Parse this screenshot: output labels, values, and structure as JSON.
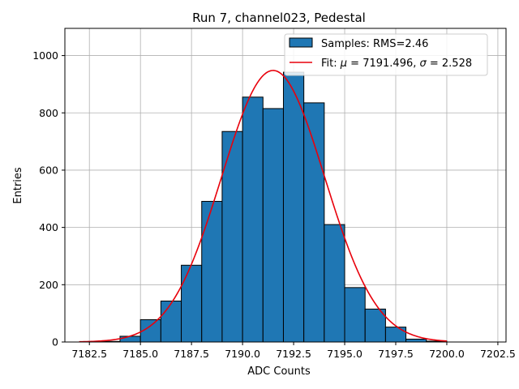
{
  "chart_data": {
    "type": "bar",
    "title": "Run 7, channel023, Pedestal",
    "xlabel": "ADC Counts",
    "ylabel": "Entries",
    "xlim": [
      7181.3,
      7202.9
    ],
    "ylim": [
      0,
      1095
    ],
    "grid": true,
    "xticks": [
      7182.5,
      7185.0,
      7187.5,
      7190.0,
      7192.5,
      7195.0,
      7197.5,
      7200.0,
      7202.5
    ],
    "xtick_labels": [
      "7182.5",
      "7185.0",
      "7187.5",
      "7190.0",
      "7192.5",
      "7195.0",
      "7197.5",
      "7200.0",
      "7202.5"
    ],
    "yticks": [
      0,
      200,
      400,
      600,
      800,
      1000
    ],
    "ytick_labels": [
      "0",
      "200",
      "400",
      "600",
      "800",
      "1000"
    ],
    "histogram": {
      "name": "Samples: RMS=2.46",
      "color": "#1f77b4",
      "edgecolor": "#000000",
      "bin_edges": [
        7183,
        7184,
        7185,
        7186,
        7187,
        7188,
        7189,
        7190,
        7191,
        7192,
        7193,
        7194,
        7195,
        7196,
        7197,
        7198,
        7199,
        7200
      ],
      "counts": [
        2,
        20,
        78,
        143,
        268,
        491,
        735,
        855,
        815,
        942,
        835,
        410,
        190,
        115,
        52,
        10,
        3
      ]
    },
    "fit": {
      "name": "Fit: μ = 7191.496, σ = 2.528",
      "color": "#e8000b",
      "mu": 7191.496,
      "sigma": 2.528,
      "amplitude": 948,
      "x_range": [
        7182,
        7200
      ]
    },
    "legend": {
      "placement": "top-right",
      "entries": [
        {
          "label_prefix": "Samples: RMS=2.46",
          "kind": "patch"
        },
        {
          "label_prefix": "Fit: ",
          "label_mu_symbol": "μ",
          "label_mu_value": " = 7191.496, ",
          "label_sigma_symbol": "σ",
          "label_sigma_value": " = 2.528",
          "kind": "line"
        }
      ]
    }
  }
}
